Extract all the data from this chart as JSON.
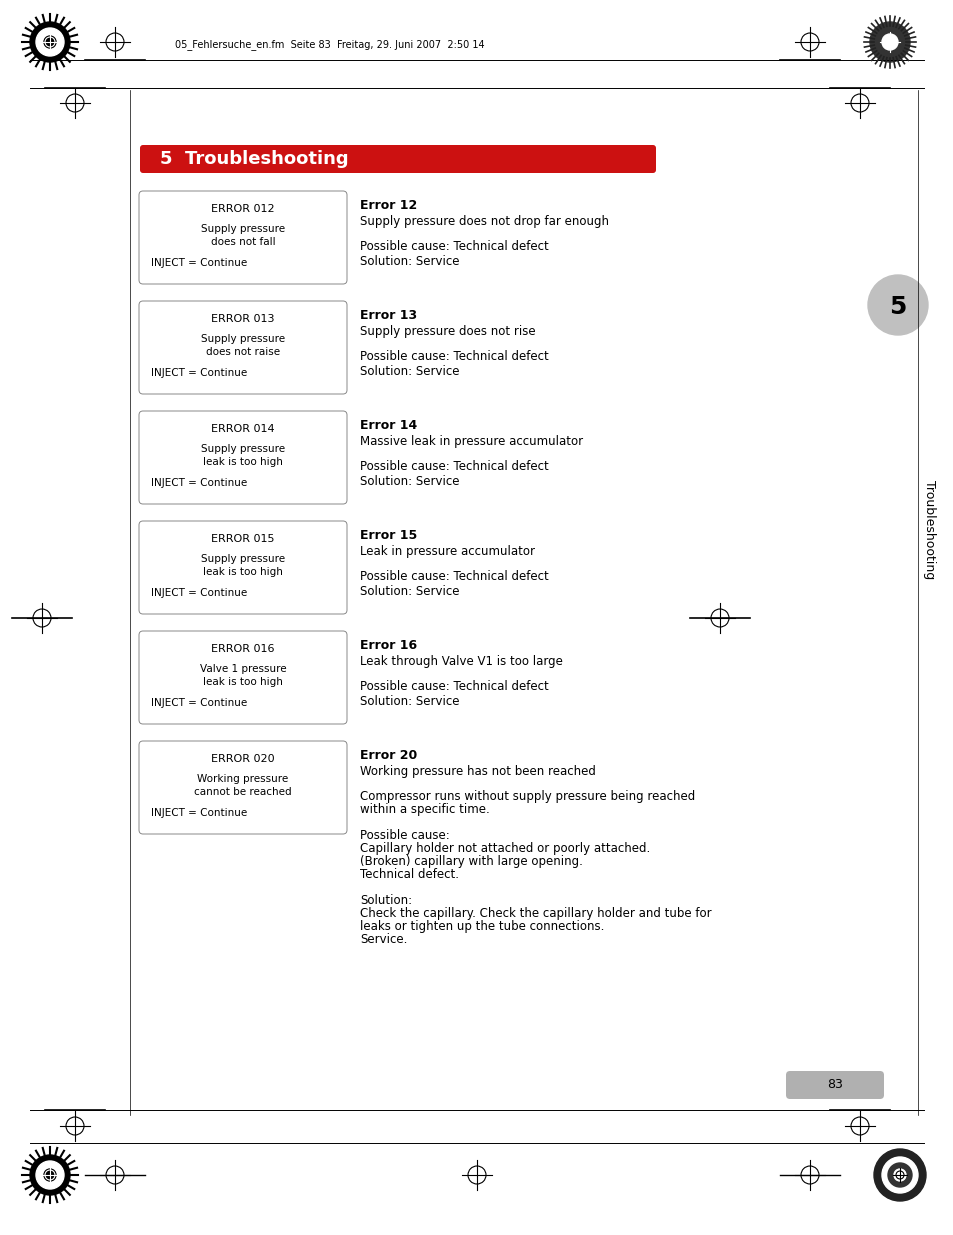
{
  "page_bg": "#ffffff",
  "header_text": "05_Fehlersuche_en.fm  Seite 83  Freitag, 29. Juni 2007  2:50 14",
  "title_bg": "#cc1111",
  "title_text": "5  Troubleshooting",
  "title_text_color": "#ffffff",
  "section_number": "5",
  "section_label": "Troubleshooting",
  "page_number": "83",
  "page_number_bg": "#b0b0b0",
  "errors": [
    {
      "code": "ERROR 012",
      "line1": "Supply pressure",
      "line2": "does not fall",
      "inject": "INJECT = Continue",
      "title": "Error 12",
      "subtitle": "Supply pressure does not drop far enough",
      "cause": "Possible cause: Technical defect",
      "solution": "Solution: Service"
    },
    {
      "code": "ERROR 013",
      "line1": "Supply pressure",
      "line2": "does not raise",
      "inject": "INJECT = Continue",
      "title": "Error 13",
      "subtitle": "Supply pressure does not rise",
      "cause": "Possible cause: Technical defect",
      "solution": "Solution: Service"
    },
    {
      "code": "ERROR 014",
      "line1": "Supply pressure",
      "line2": "leak is too high",
      "inject": "INJECT = Continue",
      "title": "Error 14",
      "subtitle": "Massive leak in pressure accumulator",
      "cause": "Possible cause: Technical defect",
      "solution": "Solution: Service"
    },
    {
      "code": "ERROR 015",
      "line1": "Supply pressure",
      "line2": "leak is too high",
      "inject": "INJECT = Continue",
      "title": "Error 15",
      "subtitle": "Leak in pressure accumulator",
      "cause": "Possible cause: Technical defect",
      "solution": "Solution: Service"
    },
    {
      "code": "ERROR 016",
      "line1": "Valve 1 pressure",
      "line2": "leak is too high",
      "inject": "INJECT = Continue",
      "title": "Error 16",
      "subtitle": "Leak through Valve V1 is too large",
      "cause": "Possible cause: Technical defect",
      "solution": "Solution: Service"
    },
    {
      "code": "ERROR 020",
      "line1": "Working pressure",
      "line2": "cannot be reached",
      "inject": "INJECT = Continue",
      "title": "Error 20",
      "subtitle": "Working pressure has not been reached",
      "cause_long": [
        "Compressor runs without supply pressure being reached",
        "within a specific time.",
        "",
        "Possible cause:",
        "Capillary holder not attached or poorly attached.",
        "(Broken) capillary with large opening.",
        "Technical defect.",
        "",
        "Solution:",
        "Check the capillary. Check the capillary holder and tube for",
        "leaks or tighten up the tube connections.",
        "Service."
      ]
    }
  ]
}
